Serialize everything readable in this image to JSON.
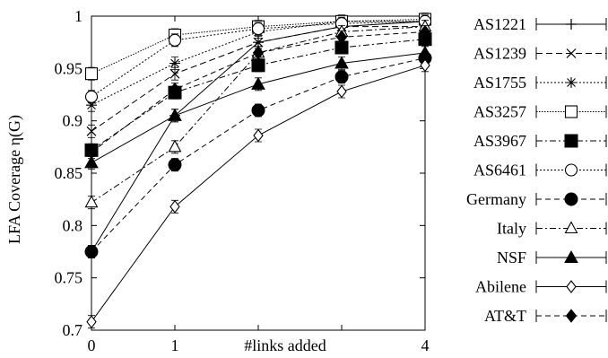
{
  "chart_data": {
    "type": "line",
    "title": "",
    "xlabel": "#links added",
    "ylabel": "LFA Coverage η(G)",
    "ylim": [
      0.7,
      1.0
    ],
    "xlim": [
      0,
      4
    ],
    "grid": false,
    "legend_position": "right",
    "xticks": [
      {
        "value": 0,
        "label": "0"
      },
      {
        "value": 1,
        "label": "1"
      },
      {
        "value": 4,
        "label": "4"
      }
    ],
    "yticks": [
      "0.7",
      "0.75",
      "0.8",
      "0.85",
      "0.9",
      "0.95",
      "1"
    ],
    "x": [
      0,
      1,
      2,
      3,
      4
    ],
    "series": [
      {
        "name": "AS1221",
        "marker": "plus",
        "dash": "solid",
        "values": [
          0.775,
          0.905,
          0.975,
          0.99,
          0.995
        ]
      },
      {
        "name": "AS1239",
        "marker": "x",
        "dash": "longdash",
        "values": [
          0.89,
          0.945,
          0.975,
          0.99,
          0.99
        ]
      },
      {
        "name": "AS1755",
        "marker": "star",
        "dash": "dotted",
        "values": [
          0.915,
          0.955,
          0.985,
          0.995,
          0.995
        ]
      },
      {
        "name": "AS3257",
        "marker": "square-open",
        "dash": "fine",
        "values": [
          0.945,
          0.982,
          0.99,
          0.995,
          0.997
        ]
      },
      {
        "name": "AS3967",
        "marker": "square-filled",
        "dash": "dashdot",
        "values": [
          0.872,
          0.927,
          0.953,
          0.97,
          0.978
        ]
      },
      {
        "name": "AS6461",
        "marker": "circle-open",
        "dash": "dotted",
        "values": [
          0.923,
          0.977,
          0.988,
          0.993,
          0.995
        ]
      },
      {
        "name": "Germany",
        "marker": "circle-filled",
        "dash": "dashed",
        "values": [
          0.775,
          0.858,
          0.91,
          0.942,
          0.96
        ]
      },
      {
        "name": "Italy",
        "marker": "triangle-open",
        "dash": "dashdot",
        "values": [
          0.822,
          0.875,
          0.965,
          0.985,
          0.99
        ]
      },
      {
        "name": "NSF",
        "marker": "triangle-filled",
        "dash": "solid",
        "values": [
          0.86,
          0.905,
          0.935,
          0.955,
          0.965
        ]
      },
      {
        "name": "Abilene",
        "marker": "diamond-open",
        "dash": "solid",
        "values": [
          0.708,
          0.818,
          0.886,
          0.928,
          0.953
        ]
      },
      {
        "name": "AT&T",
        "marker": "diamond-filled",
        "dash": "dashed",
        "values": [
          0.87,
          0.93,
          0.965,
          0.98,
          0.985
        ]
      }
    ]
  }
}
